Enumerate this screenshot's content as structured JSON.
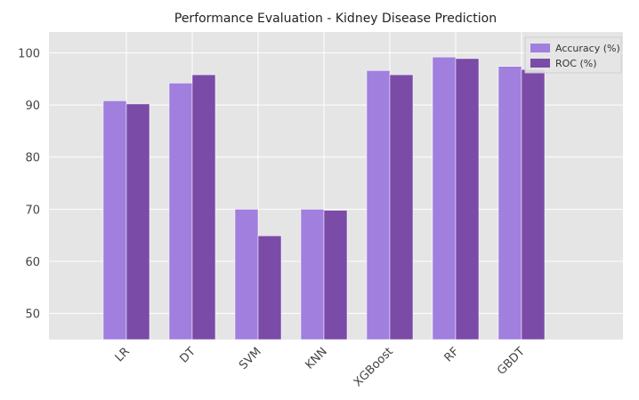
{
  "chart_data": {
    "type": "bar",
    "title": "Performance Evaluation - Kidney Disease Prediction",
    "categories": [
      "LR",
      "DT",
      "SVM",
      "KNN",
      "XGBoost",
      "RF",
      "GBDT"
    ],
    "series": [
      {
        "name": "Accuracy (%)",
        "color": "#a07fdf",
        "values": [
          90.8,
          94.2,
          70.0,
          70.0,
          96.6,
          99.2,
          97.4
        ]
      },
      {
        "name": "ROC (%)",
        "color": "#7b4ba8",
        "values": [
          90.2,
          95.8,
          64.9,
          69.8,
          95.8,
          98.9,
          96.8
        ]
      }
    ],
    "ylim": [
      45,
      104
    ],
    "yticks": [
      50,
      60,
      70,
      80,
      90,
      100
    ],
    "grid": true,
    "legend": "upper right"
  }
}
